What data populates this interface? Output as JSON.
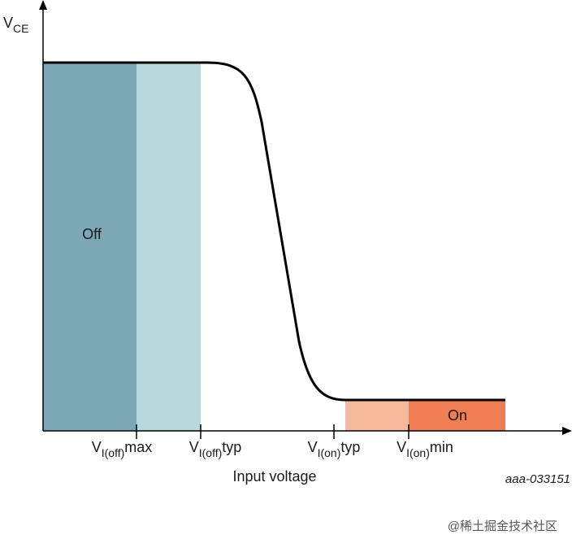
{
  "y_axis_label": {
    "main": "V",
    "sub": "CE"
  },
  "x_axis_label": "Input voltage",
  "ticks": [
    {
      "main": "V",
      "sub": "I(off)",
      "suffix": "max"
    },
    {
      "main": "V",
      "sub": "I(off)",
      "suffix": "typ"
    },
    {
      "main": "V",
      "sub": "I(on)",
      "suffix": "typ"
    },
    {
      "main": "V",
      "sub": "I(on)",
      "suffix": "min"
    }
  ],
  "regions": {
    "off": "Off",
    "on": "On"
  },
  "figure_id": "aaa-033151",
  "watermark": "@稀土掘金技术社区"
}
